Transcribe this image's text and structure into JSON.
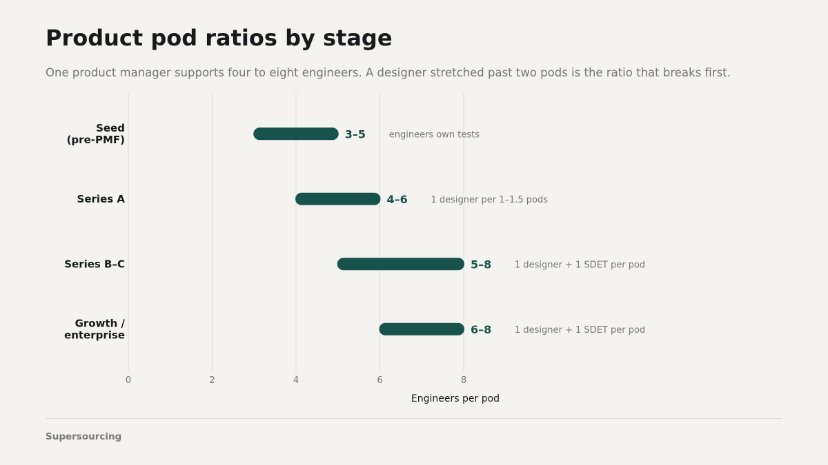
{
  "title": "Product pod ratios by stage",
  "subtitle": "One product manager supports four to eight engineers. A designer stretched past two pods is the ratio that breaks first.",
  "source": "Supersourcing",
  "colors": {
    "background": "#f4f3f0",
    "bar": "#17524d",
    "range_label": "#17524d",
    "note": "#76756f",
    "grid": "#dcdbd7",
    "text": "#171a1a"
  },
  "chart_data": {
    "type": "bar",
    "orientation": "horizontal",
    "variant": "range",
    "xlabel": "Engineers per pod",
    "xlim": [
      0,
      8
    ],
    "xticks": [
      "0",
      "2",
      "4",
      "6",
      "8"
    ],
    "grid": true,
    "categories": [
      [
        "Seed",
        "(pre-PMF)"
      ],
      [
        "Series A"
      ],
      [
        "Series B–C"
      ],
      [
        "Growth /",
        "enterprise"
      ]
    ],
    "ranges": [
      [
        3,
        5
      ],
      [
        4,
        6
      ],
      [
        5,
        8
      ],
      [
        6,
        8
      ]
    ],
    "range_labels": [
      "3–5",
      "4–6",
      "5–8",
      "6–8"
    ],
    "notes": [
      "engineers own tests",
      "1 designer per 1–1.5 pods",
      "1 designer + 1 SDET per pod",
      "1 designer + 1 SDET per pod"
    ]
  }
}
